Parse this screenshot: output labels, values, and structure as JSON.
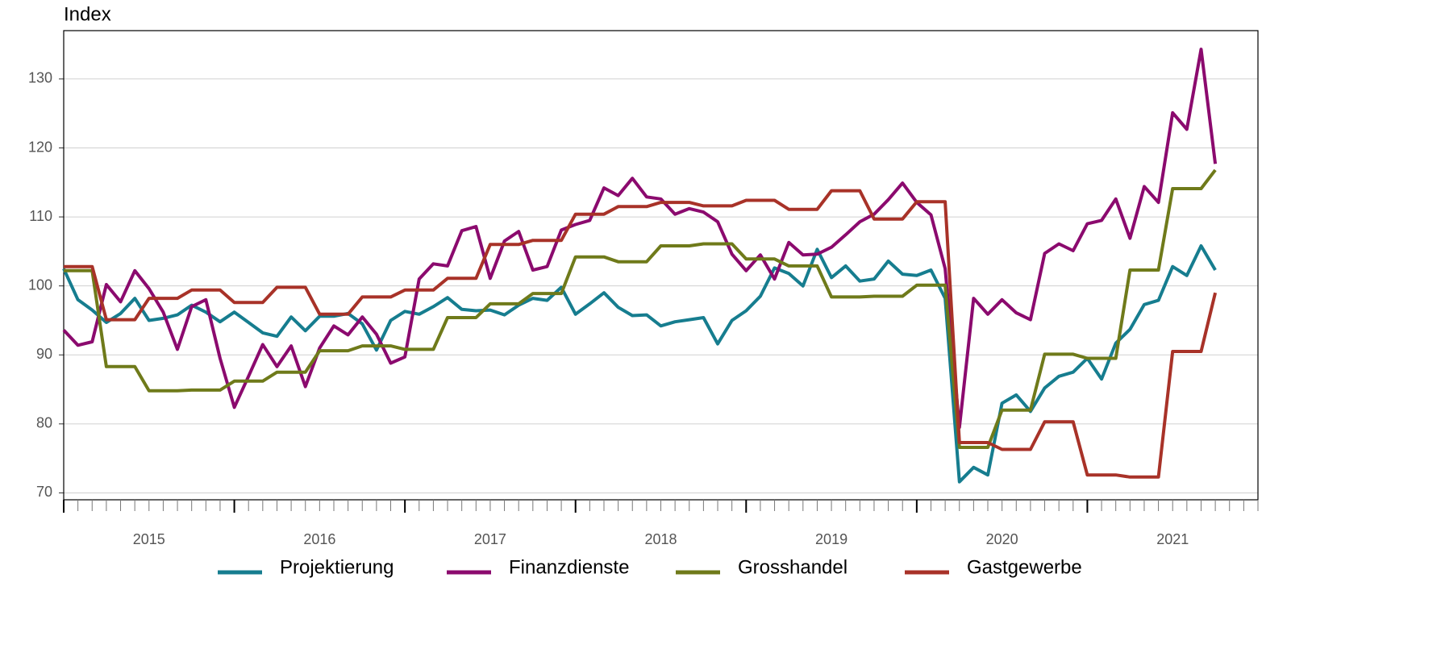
{
  "chart_data": {
    "type": "line",
    "y_label": "Index",
    "x": [
      "2015-01",
      "2015-02",
      "2015-03",
      "2015-04",
      "2015-05",
      "2015-06",
      "2015-07",
      "2015-08",
      "2015-09",
      "2015-10",
      "2015-11",
      "2015-12",
      "2016-01",
      "2016-02",
      "2016-03",
      "2016-04",
      "2016-05",
      "2016-06",
      "2016-07",
      "2016-08",
      "2016-09",
      "2016-10",
      "2016-11",
      "2016-12",
      "2017-01",
      "2017-02",
      "2017-03",
      "2017-04",
      "2017-05",
      "2017-06",
      "2017-07",
      "2017-08",
      "2017-09",
      "2017-10",
      "2017-11",
      "2017-12",
      "2018-01",
      "2018-02",
      "2018-03",
      "2018-04",
      "2018-05",
      "2018-06",
      "2018-07",
      "2018-08",
      "2018-09",
      "2018-10",
      "2018-11",
      "2018-12",
      "2019-01",
      "2019-02",
      "2019-03",
      "2019-04",
      "2019-05",
      "2019-06",
      "2019-07",
      "2019-08",
      "2019-09",
      "2019-10",
      "2019-11",
      "2019-12",
      "2020-01",
      "2020-02",
      "2020-03",
      "2020-04",
      "2020-05",
      "2020-06",
      "2020-07",
      "2020-08",
      "2020-09",
      "2020-10",
      "2020-11",
      "2020-12",
      "2021-01",
      "2021-02",
      "2021-03",
      "2021-04",
      "2021-05",
      "2021-06",
      "2021-07",
      "2021-08",
      "2021-09",
      "2021-10"
    ],
    "xlim": [
      "2015-01",
      "2021-12"
    ],
    "xticks": [
      2015,
      2016,
      2017,
      2018,
      2019,
      2020,
      2021
    ],
    "ylim": [
      69,
      137
    ],
    "yticks": [
      70,
      80,
      90,
      100,
      110,
      120,
      130
    ],
    "grid": true,
    "legend_position": "bottom",
    "series": [
      {
        "name": "Projektierung",
        "color": "#167d8f",
        "values": [
          102.5,
          98,
          96.5,
          94.7,
          96,
          98.2,
          95,
          95.3,
          95.8,
          97.2,
          96.2,
          94.8,
          96.2,
          94.7,
          93.2,
          92.7,
          95.5,
          93.5,
          95.6,
          95.6,
          96,
          94.5,
          90.7,
          95,
          96.3,
          95.9,
          97,
          98.3,
          96.6,
          96.4,
          96.5,
          95.8,
          97.2,
          98.2,
          97.9,
          99.8,
          95.9,
          97.4,
          99,
          96.9,
          95.7,
          95.8,
          94.2,
          94.8,
          95.1,
          95.4,
          91.6,
          95,
          96.4,
          98.5,
          102.6,
          101.8,
          100,
          105.3,
          101.2,
          102.9,
          100.7,
          101,
          103.6,
          101.7,
          101.5,
          102.3,
          98.2,
          71.6,
          73.7,
          72.6,
          83,
          84.2,
          81.8,
          85.2,
          86.9,
          87.5,
          89.5,
          86.5,
          91.7,
          93.7,
          97.3,
          97.9,
          102.8,
          101.5,
          105.8,
          102.3
        ]
      },
      {
        "name": "Finanzdienste",
        "color": "#8b0a6e",
        "values": [
          93.6,
          91.4,
          91.9,
          100.2,
          97.7,
          102.2,
          99.6,
          96.2,
          90.8,
          97,
          98,
          89.5,
          82.4,
          86.9,
          91.5,
          88.3,
          91.3,
          85.4,
          91,
          94.2,
          92.9,
          95.5,
          93,
          88.8,
          89.7,
          101,
          103.2,
          102.9,
          108,
          108.6,
          101.1,
          106.5,
          107.9,
          102.3,
          102.8,
          108.1,
          108.9,
          109.5,
          114.2,
          113.1,
          115.6,
          112.9,
          112.6,
          110.4,
          111.2,
          110.7,
          109.3,
          104.6,
          102.2,
          104.5,
          101,
          106.3,
          104.5,
          104.6,
          105.6,
          107.4,
          109.3,
          110.4,
          112.5,
          114.9,
          112.1,
          110.3,
          102.5,
          79.5,
          98.2,
          95.9,
          98,
          96.1,
          95.1,
          104.7,
          106.1,
          105.1,
          109,
          109.5,
          112.6,
          106.9,
          114.4,
          112.1,
          125.1,
          122.7,
          134.3,
          117.7
        ]
      },
      {
        "name": "Grosshandel",
        "color": "#6f7a1a",
        "values": [
          102.2,
          102.2,
          102.2,
          88.3,
          88.3,
          88.3,
          84.8,
          84.8,
          84.8,
          84.9,
          84.9,
          84.9,
          86.2,
          86.2,
          86.2,
          87.5,
          87.5,
          87.5,
          90.6,
          90.6,
          90.6,
          91.3,
          91.3,
          91.3,
          90.8,
          90.8,
          90.8,
          95.4,
          95.4,
          95.4,
          97.4,
          97.4,
          97.4,
          98.9,
          98.9,
          98.9,
          104.2,
          104.2,
          104.2,
          103.5,
          103.5,
          103.5,
          105.8,
          105.8,
          105.8,
          106.1,
          106.1,
          106.1,
          103.9,
          103.9,
          103.9,
          102.9,
          102.9,
          102.9,
          98.4,
          98.4,
          98.4,
          98.5,
          98.5,
          98.5,
          100.1,
          100.1,
          100.1,
          76.6,
          76.6,
          76.6,
          82,
          82,
          82,
          90.1,
          90.1,
          90.1,
          89.5,
          89.5,
          89.5,
          102.3,
          102.3,
          102.3,
          114.1,
          114.1,
          114.1,
          116.8
        ]
      },
      {
        "name": "Gastgewerbe",
        "color": "#a83228",
        "values": [
          102.8,
          102.8,
          102.8,
          95.1,
          95.1,
          95.1,
          98.2,
          98.2,
          98.2,
          99.4,
          99.4,
          99.4,
          97.6,
          97.6,
          97.6,
          99.8,
          99.8,
          99.8,
          95.9,
          95.9,
          95.9,
          98.4,
          98.4,
          98.4,
          99.4,
          99.4,
          99.4,
          101.1,
          101.1,
          101.1,
          106,
          106,
          106,
          106.6,
          106.6,
          106.6,
          110.4,
          110.4,
          110.4,
          111.5,
          111.5,
          111.5,
          112.1,
          112.1,
          112.1,
          111.6,
          111.6,
          111.6,
          112.4,
          112.4,
          112.4,
          111.1,
          111.1,
          111.1,
          113.8,
          113.8,
          113.8,
          109.7,
          109.7,
          109.7,
          112.2,
          112.2,
          112.2,
          77.3,
          77.3,
          77.3,
          76.3,
          76.3,
          76.3,
          80.3,
          80.3,
          80.3,
          72.6,
          72.6,
          72.6,
          72.3,
          72.3,
          72.3,
          90.5,
          90.5,
          90.5,
          99
        ]
      }
    ]
  }
}
